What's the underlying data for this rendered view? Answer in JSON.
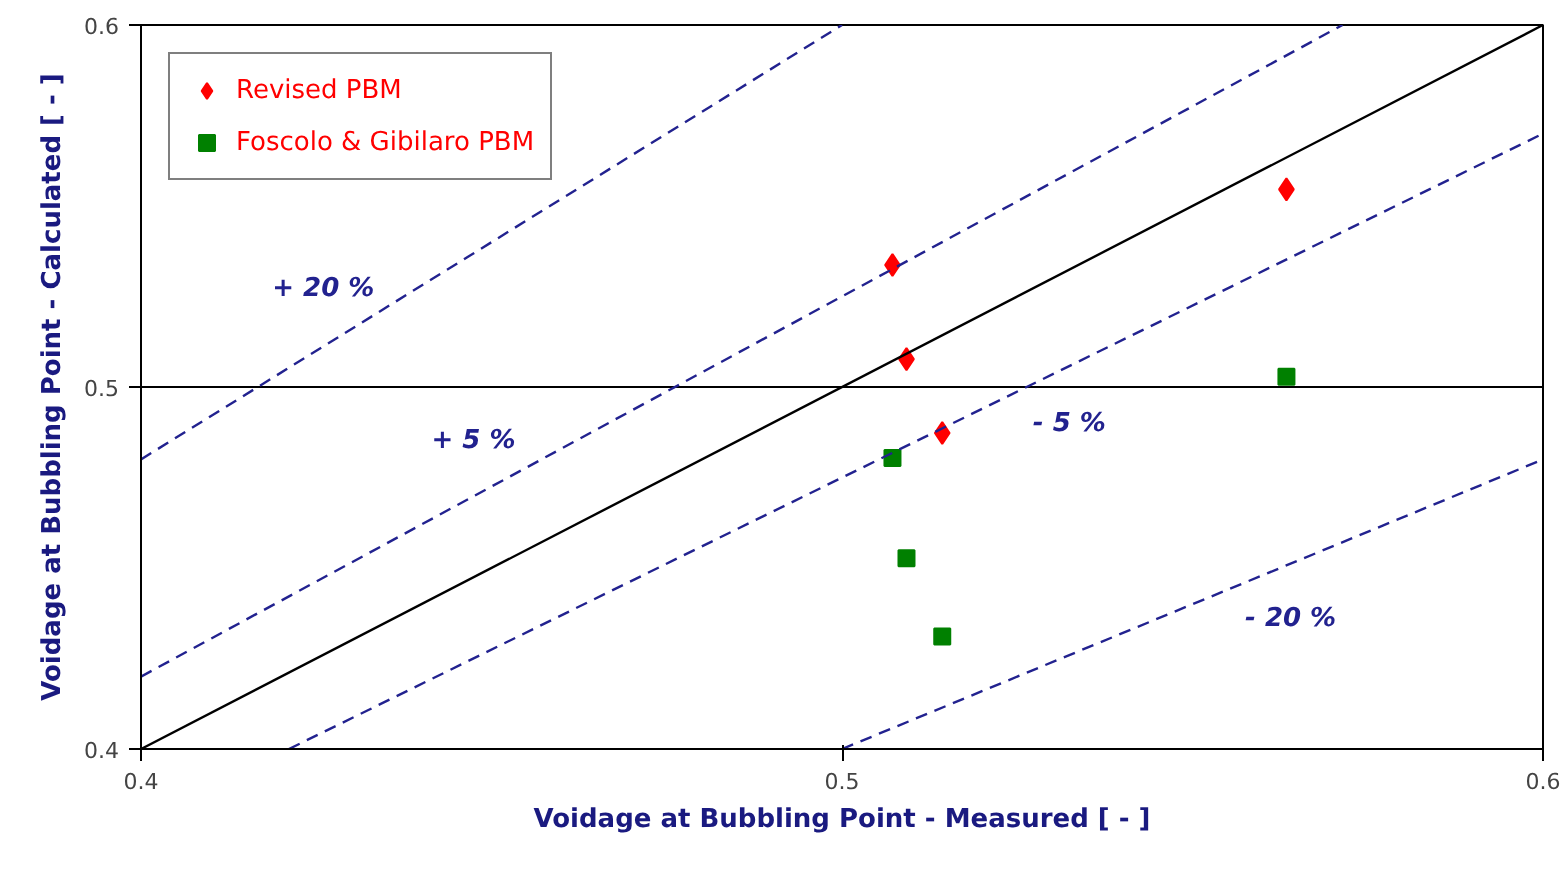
{
  "chart_data": {
    "type": "scatter",
    "xlabel": "Voidage at Bubbling Point - Measured [ - ]",
    "ylabel": "Voidage at Bubbling Point - Calculated [ - ]",
    "xlim": [
      0.4,
      0.6
    ],
    "ylim": [
      0.4,
      0.6
    ],
    "xticks": [
      0.4,
      0.5,
      0.6
    ],
    "yticks": [
      0.4,
      0.5,
      0.6
    ],
    "grid": "y",
    "legend": "top left",
    "series": [
      {
        "name": "Revised PBM",
        "marker": "diamond",
        "color": "#ff0000",
        "x": [
          0.5072,
          0.5092,
          0.5143,
          0.5634
        ],
        "values": [
          0.5337,
          0.5077,
          0.4873,
          0.5546
        ]
      },
      {
        "name": "Foscolo & Gibilaro PBM",
        "marker": "square",
        "color": "#008000",
        "x": [
          0.5072,
          0.5092,
          0.5143,
          0.5634
        ],
        "values": [
          0.4804,
          0.4527,
          0.4311,
          0.5028
        ]
      },
      {
        "name": "+ 20 %",
        "type": "line",
        "line_style": "dashed",
        "color": "#22228f",
        "x": [
          0.4,
          0.5
        ],
        "values": [
          0.48,
          0.6
        ]
      },
      {
        "name": "+ 5 %",
        "type": "line",
        "line_style": "dashed",
        "color": "#22228f",
        "x": [
          0.4,
          0.5714
        ],
        "values": [
          0.42,
          0.6
        ]
      },
      {
        "type": "line",
        "line_style": "solid",
        "color": "#000000",
        "x": [
          0.4,
          0.6
        ],
        "values": [
          0.4,
          0.6
        ]
      },
      {
        "name": "- 5 %",
        "type": "line",
        "line_style": "dashed",
        "color": "#22228f",
        "x": [
          0.4211,
          0.6
        ],
        "values": [
          0.4,
          0.57
        ]
      },
      {
        "name": "- 20 %",
        "type": "line",
        "line_style": "dashed",
        "color": "#22228f",
        "x": [
          0.5,
          0.6
        ],
        "values": [
          0.4,
          0.48
        ]
      }
    ]
  }
}
